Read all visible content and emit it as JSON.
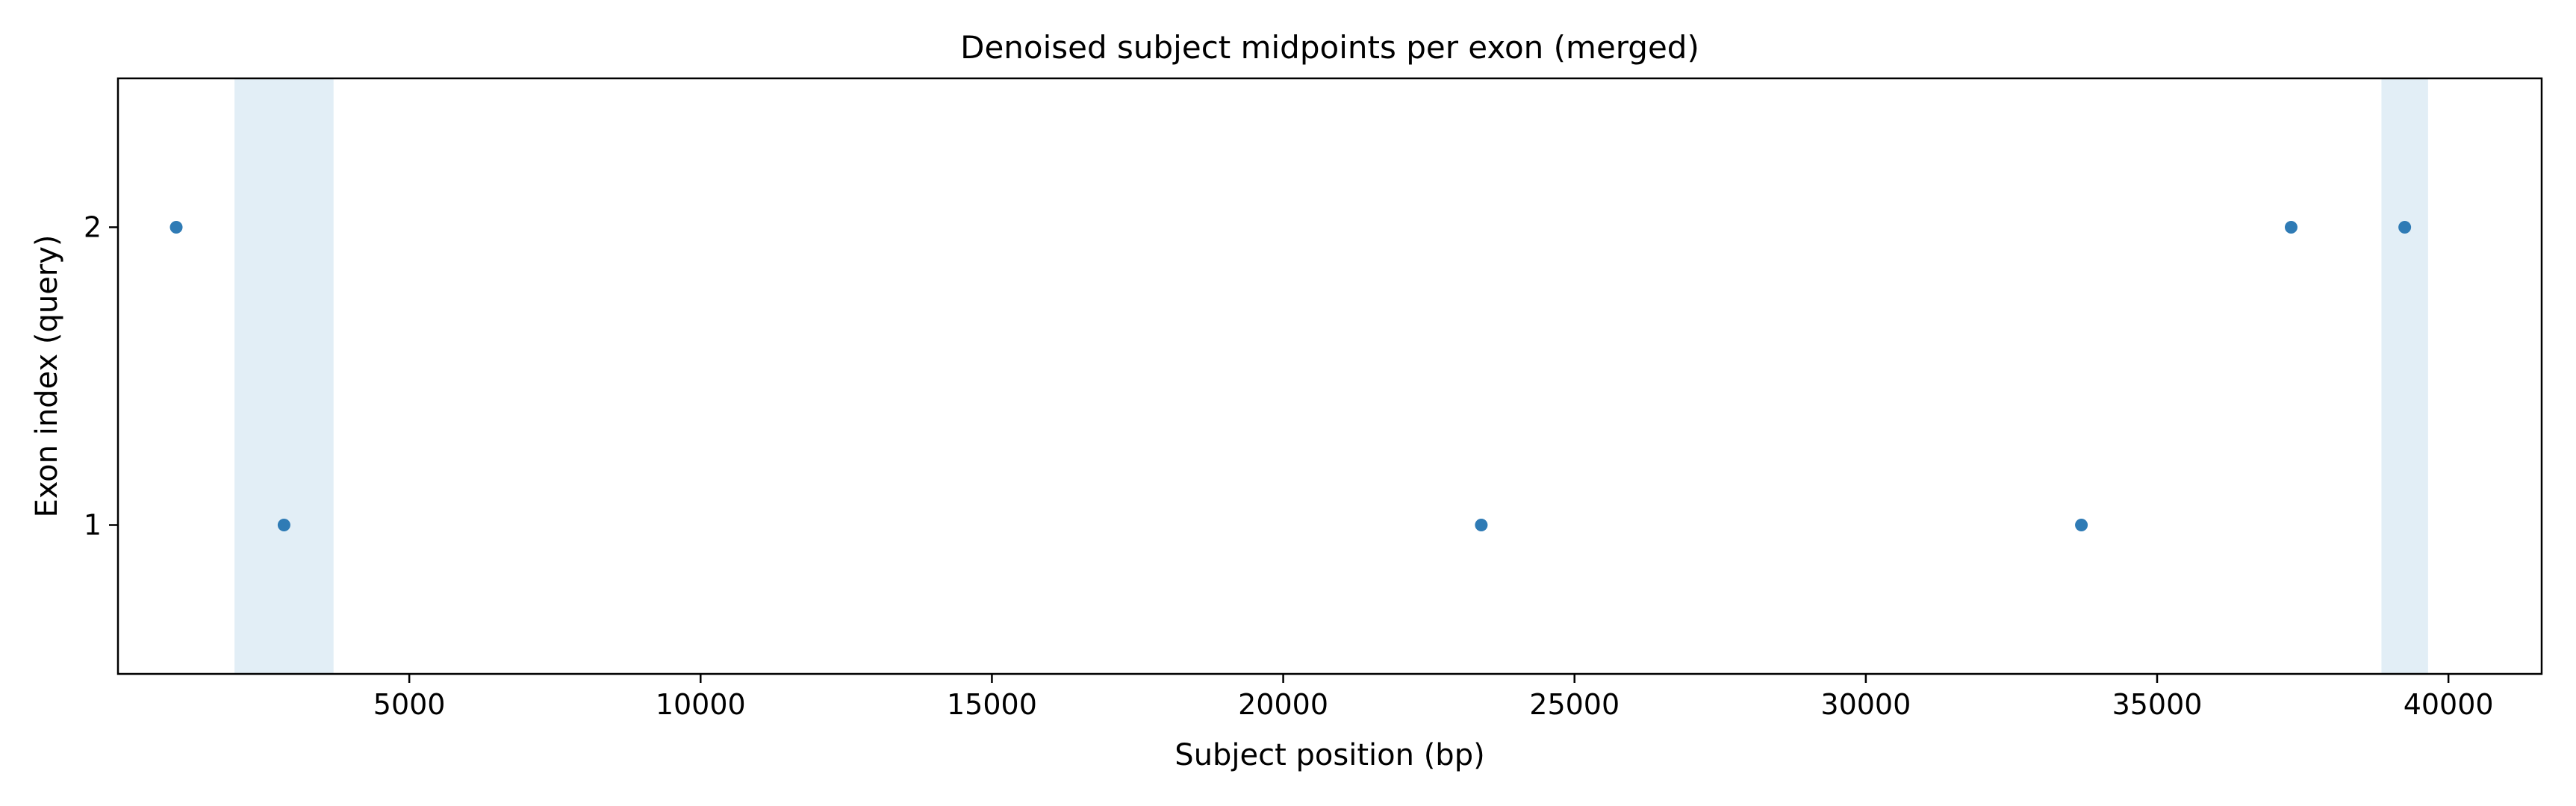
{
  "chart_data": {
    "type": "scatter",
    "title": "Denoised subject midpoints per exon (merged)",
    "xlabel": "Subject position (bp)",
    "ylabel": "Exon index (query)",
    "xlim": [
      0,
      41600
    ],
    "ylim": [
      0.5,
      2.5
    ],
    "xticks": [
      5000,
      10000,
      15000,
      20000,
      25000,
      30000,
      35000,
      40000
    ],
    "yticks": [
      1,
      2
    ],
    "grid": false,
    "points": [
      {
        "x": 1000,
        "y": 2
      },
      {
        "x": 2850,
        "y": 1
      },
      {
        "x": 23400,
        "y": 1
      },
      {
        "x": 33700,
        "y": 1
      },
      {
        "x": 37300,
        "y": 2
      },
      {
        "x": 39250,
        "y": 2
      }
    ],
    "shaded_regions": [
      {
        "x0": 2000,
        "x1": 3700
      },
      {
        "x0": 38850,
        "x1": 39650
      }
    ],
    "colors": {
      "points": "#2f7bb5",
      "shade": "#e2eef6",
      "axis": "#000000"
    }
  }
}
